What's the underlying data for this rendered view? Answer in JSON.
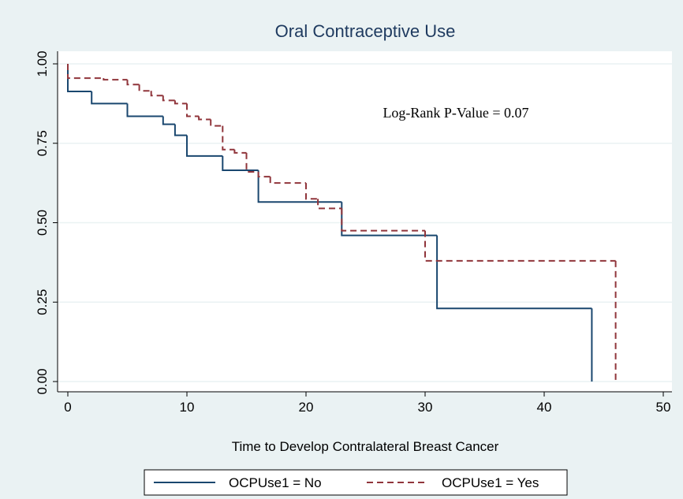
{
  "chart_data": {
    "type": "step",
    "title": "Oral Contraceptive Use",
    "x_label": "Time to Develop Contralateral Breast Cancer",
    "annotation": "Log-Rank P-Value = 0.07",
    "series": [
      {
        "name": "OCPUse1 = No",
        "color": "#1a476f",
        "dashed": false,
        "x": [
          0,
          0,
          2,
          5,
          8,
          9,
          10,
          13,
          16,
          23,
          31,
          44
        ],
        "values": [
          1.0,
          0.913,
          0.875,
          0.835,
          0.81,
          0.775,
          0.71,
          0.665,
          0.565,
          0.46,
          0.23,
          0
        ]
      },
      {
        "name": "OCPUse1 = Yes",
        "color": "#90353b",
        "dashed": true,
        "x": [
          0,
          0,
          3,
          5,
          6,
          7,
          8,
          9,
          10,
          11,
          12,
          13,
          14,
          15,
          16,
          17,
          20,
          21,
          23,
          30,
          46
        ],
        "values": [
          1.0,
          0.955,
          0.95,
          0.935,
          0.915,
          0.9,
          0.885,
          0.875,
          0.835,
          0.825,
          0.805,
          0.73,
          0.72,
          0.66,
          0.645,
          0.625,
          0.575,
          0.545,
          0.475,
          0.38,
          0
        ]
      }
    ],
    "xlim": [
      0,
      50
    ],
    "xticks": [
      0,
      10,
      20,
      30,
      40,
      50
    ],
    "ylim": [
      0,
      1
    ],
    "yticks": [
      {
        "value": 0,
        "label": "0.00"
      },
      {
        "value": 0.25,
        "label": "0.25"
      },
      {
        "value": 0.5,
        "label": "0.50"
      },
      {
        "value": 0.75,
        "label": "0.75"
      },
      {
        "value": 1,
        "label": "1.00"
      }
    ],
    "grid": true,
    "legend": "bottom"
  }
}
